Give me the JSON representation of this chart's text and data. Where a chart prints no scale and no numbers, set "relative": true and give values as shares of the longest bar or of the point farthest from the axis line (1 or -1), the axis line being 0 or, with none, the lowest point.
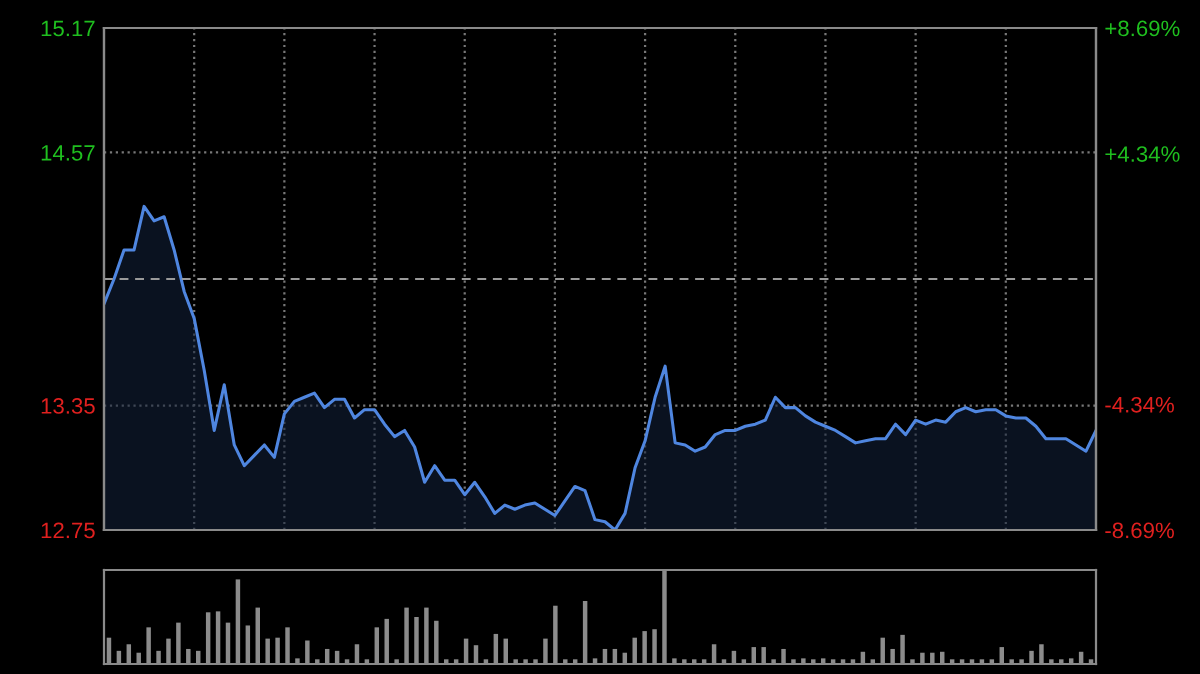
{
  "chart_data": [
    {
      "type": "area",
      "categories": [
        null,
        null,
        null,
        null,
        null,
        null,
        null,
        null,
        null,
        null,
        null,
        null,
        null,
        null,
        null,
        null,
        null,
        null,
        null,
        null,
        null,
        null,
        null,
        null,
        null,
        null,
        null,
        null,
        null,
        null,
        null,
        null,
        null,
        null,
        null,
        null,
        null,
        null,
        null,
        null,
        null,
        null,
        null,
        null,
        null,
        null,
        null,
        null,
        null,
        null,
        null,
        null,
        null,
        null,
        null,
        null,
        null,
        null,
        null,
        null,
        null,
        null,
        null,
        null,
        null,
        null,
        null,
        null,
        null,
        null,
        null,
        null,
        null,
        null,
        null,
        null,
        null,
        null,
        null,
        null,
        null,
        null,
        null,
        null,
        null,
        null,
        null,
        null,
        null,
        null,
        null,
        null,
        null,
        null,
        null,
        null,
        null,
        null,
        null,
        null
      ],
      "series": [
        {
          "color": "#4f86e0",
          "values": [
            13.84,
            13.96,
            14.1,
            14.1,
            14.31,
            14.24,
            14.26,
            14.1,
            13.9,
            13.77,
            13.52,
            13.23,
            13.45,
            13.16,
            13.06,
            13.11,
            13.16,
            13.1,
            13.31,
            13.37,
            13.39,
            13.41,
            13.34,
            13.38,
            13.38,
            13.29,
            13.33,
            13.33,
            13.26,
            13.2,
            13.23,
            13.15,
            12.98,
            13.06,
            12.99,
            12.99,
            12.92,
            12.98,
            12.91,
            12.83,
            12.87,
            12.85,
            12.87,
            12.88,
            12.85,
            12.82,
            12.89,
            12.96,
            12.94,
            12.8,
            12.79,
            12.75,
            12.83,
            13.05,
            13.18,
            13.39,
            13.54,
            13.17,
            13.16,
            13.13,
            13.15,
            13.21,
            13.23,
            13.23,
            13.25,
            13.26,
            13.28,
            13.39,
            13.34,
            13.34,
            13.3,
            13.27,
            13.25,
            13.23,
            13.2,
            13.17,
            13.18,
            13.19,
            13.19,
            13.26,
            13.21,
            13.28,
            13.26,
            13.28,
            13.27,
            13.32,
            13.34,
            13.32,
            13.33,
            13.33,
            13.3,
            13.29,
            13.29,
            13.25,
            13.19,
            13.19,
            13.19,
            13.16,
            13.13,
            13.23
          ]
        }
      ],
      "ylim": [
        12.75,
        15.17
      ],
      "yticks": [
        12.75,
        13.35,
        14.57,
        15.17
      ],
      "y2lim": [
        -8.69,
        8.69
      ],
      "y2ticks": [
        {
          "value": -8.69,
          "label": "-8.69%"
        },
        {
          "value": -4.34,
          "label": "-4.34%"
        },
        {
          "value": 4.34,
          "label": "+4.34%"
        },
        {
          "value": 8.69,
          "label": "+8.69%"
        }
      ],
      "ref_lines": [
        {
          "axis": "y",
          "value": 13.96,
          "label": null,
          "line_style": "dashed",
          "color": "#9a9a9a"
        }
      ],
      "grid": true
    },
    {
      "type": "bar",
      "relative": true,
      "categories": [
        null,
        null,
        null,
        null,
        null,
        null,
        null,
        null,
        null,
        null,
        null,
        null,
        null,
        null,
        null,
        null,
        null,
        null,
        null,
        null,
        null,
        null,
        null,
        null,
        null,
        null,
        null,
        null,
        null,
        null,
        null,
        null,
        null,
        null,
        null,
        null,
        null,
        null,
        null,
        null,
        null,
        null,
        null,
        null,
        null,
        null,
        null,
        null,
        null,
        null,
        null,
        null,
        null,
        null,
        null,
        null,
        null,
        null,
        null,
        null,
        null,
        null,
        null,
        null,
        null,
        null,
        null,
        null,
        null,
        null,
        null,
        null,
        null,
        null,
        null,
        null,
        null,
        null,
        null,
        null,
        null,
        null,
        null,
        null,
        null,
        null,
        null,
        null,
        null,
        null,
        null,
        null,
        null,
        null,
        null,
        null,
        null,
        null,
        null,
        null
      ],
      "series": [
        {
          "color": "#8c8c8c",
          "values": [
            0.28,
            0.14,
            0.21,
            0.12,
            0.39,
            0.14,
            0.27,
            0.44,
            0.16,
            0.14,
            0.55,
            0.56,
            0.44,
            0.9,
            0.41,
            0.6,
            0.27,
            0.28,
            0.39,
            0.06,
            0.25,
            0.05,
            0.16,
            0.14,
            0.05,
            0.21,
            0.05,
            0.39,
            0.48,
            0.05,
            0.6,
            0.5,
            0.6,
            0.46,
            0.05,
            0.05,
            0.27,
            0.2,
            0.05,
            0.32,
            0.27,
            0.05,
            0.05,
            0.05,
            0.27,
            0.62,
            0.05,
            0.05,
            0.67,
            0.06,
            0.16,
            0.16,
            0.12,
            0.28,
            0.35,
            0.37,
            1,
            0.06,
            0.05,
            0.05,
            0.05,
            0.21,
            0.05,
            0.14,
            0.05,
            0.18,
            0.18,
            0.05,
            0.16,
            0.05,
            0.06,
            0.05,
            0.06,
            0.05,
            0.05,
            0.05,
            0.13,
            0.05,
            0.28,
            0.16,
            0.31,
            0.05,
            0.12,
            0.12,
            0.13,
            0.05,
            0.05,
            0.05,
            0.05,
            0.05,
            0.18,
            0.05,
            0.05,
            0.14,
            0.21,
            0.05,
            0.05,
            0.06,
            0.13,
            0.05
          ]
        }
      ]
    }
  ]
}
